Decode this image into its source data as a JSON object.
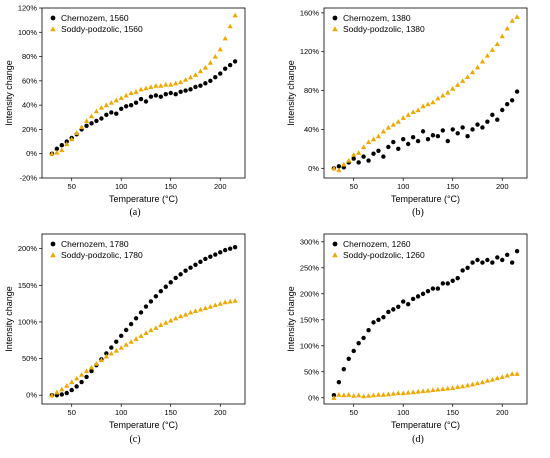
{
  "colors": {
    "chernozem": "#000000",
    "soddy": "#f0a800"
  },
  "chart_data": [
    {
      "type": "scatter",
      "panel_label": "(a)",
      "xlabel": "Temperature (°C)",
      "ylabel": "Intensity change",
      "xlim": [
        20,
        225
      ],
      "ylim": [
        -0.2,
        1.2
      ],
      "xticks": [
        50,
        100,
        150,
        200
      ],
      "yticks": [
        -0.2,
        0,
        0.2,
        0.4,
        0.6,
        0.8,
        1.0,
        1.2
      ],
      "ytick_labels": [
        "-20%",
        "0%",
        "20%",
        "40%",
        "60%",
        "80%",
        "100%",
        "120%"
      ],
      "legend_position": "top-left",
      "series": [
        {
          "name": "Chernozem, 1560",
          "marker": "circle",
          "color": "#000000",
          "x": [
            30,
            35,
            40,
            45,
            50,
            55,
            60,
            65,
            70,
            75,
            80,
            85,
            90,
            95,
            100,
            105,
            110,
            115,
            120,
            125,
            130,
            135,
            140,
            145,
            150,
            155,
            160,
            165,
            170,
            175,
            180,
            185,
            190,
            195,
            200,
            205,
            210,
            215
          ],
          "y": [
            0.0,
            0.04,
            0.07,
            0.1,
            0.13,
            0.16,
            0.2,
            0.23,
            0.25,
            0.27,
            0.29,
            0.32,
            0.34,
            0.33,
            0.37,
            0.39,
            0.4,
            0.42,
            0.45,
            0.43,
            0.47,
            0.48,
            0.47,
            0.49,
            0.5,
            0.49,
            0.51,
            0.52,
            0.53,
            0.55,
            0.56,
            0.58,
            0.6,
            0.63,
            0.66,
            0.7,
            0.73,
            0.76
          ]
        },
        {
          "name": "Soddy-podzolic, 1560",
          "marker": "triangle",
          "color": "#f0a800",
          "x": [
            30,
            35,
            40,
            45,
            50,
            55,
            60,
            65,
            70,
            75,
            80,
            85,
            90,
            95,
            100,
            105,
            110,
            115,
            120,
            125,
            130,
            135,
            140,
            145,
            150,
            155,
            160,
            165,
            170,
            175,
            180,
            185,
            190,
            195,
            200,
            205,
            210,
            215
          ],
          "y": [
            0.0,
            0.01,
            0.03,
            0.08,
            0.12,
            0.17,
            0.22,
            0.27,
            0.31,
            0.35,
            0.38,
            0.4,
            0.42,
            0.44,
            0.46,
            0.48,
            0.5,
            0.51,
            0.53,
            0.54,
            0.55,
            0.56,
            0.56,
            0.57,
            0.57,
            0.58,
            0.59,
            0.61,
            0.63,
            0.65,
            0.68,
            0.71,
            0.75,
            0.8,
            0.86,
            0.95,
            1.05,
            1.14
          ]
        }
      ]
    },
    {
      "type": "scatter",
      "panel_label": "(b)",
      "xlabel": "Temperature (°C)",
      "ylabel": "Intensity change",
      "xlim": [
        20,
        225
      ],
      "ylim": [
        -0.1,
        1.65
      ],
      "xticks": [
        50,
        100,
        150,
        200
      ],
      "yticks": [
        0,
        0.4,
        0.8,
        1.2,
        1.6
      ],
      "ytick_labels": [
        "0%",
        "40%",
        "80%",
        "120%",
        "160%"
      ],
      "legend_position": "top-left",
      "series": [
        {
          "name": "Chernozem, 1380",
          "marker": "circle",
          "color": "#000000",
          "x": [
            30,
            35,
            40,
            45,
            50,
            55,
            60,
            65,
            70,
            75,
            80,
            85,
            90,
            95,
            100,
            105,
            110,
            115,
            120,
            125,
            130,
            135,
            140,
            145,
            150,
            155,
            160,
            165,
            170,
            175,
            180,
            185,
            190,
            195,
            200,
            205,
            210,
            215
          ],
          "y": [
            0.0,
            0.02,
            0.01,
            0.06,
            0.1,
            0.06,
            0.12,
            0.08,
            0.15,
            0.18,
            0.12,
            0.22,
            0.27,
            0.2,
            0.3,
            0.25,
            0.32,
            0.28,
            0.38,
            0.3,
            0.34,
            0.33,
            0.39,
            0.28,
            0.4,
            0.36,
            0.42,
            0.33,
            0.4,
            0.45,
            0.42,
            0.48,
            0.55,
            0.5,
            0.6,
            0.66,
            0.7,
            0.79
          ]
        },
        {
          "name": "Soddy-podzolic, 1380",
          "marker": "triangle",
          "color": "#f0a800",
          "x": [
            30,
            35,
            40,
            45,
            50,
            55,
            60,
            65,
            70,
            75,
            80,
            85,
            90,
            95,
            100,
            105,
            110,
            115,
            120,
            125,
            130,
            135,
            140,
            145,
            150,
            155,
            160,
            165,
            170,
            175,
            180,
            185,
            190,
            195,
            200,
            205,
            210,
            215
          ],
          "y": [
            0.0,
            -0.02,
            0.04,
            0.08,
            0.14,
            0.16,
            0.22,
            0.27,
            0.3,
            0.33,
            0.38,
            0.42,
            0.45,
            0.48,
            0.52,
            0.55,
            0.58,
            0.6,
            0.64,
            0.66,
            0.68,
            0.72,
            0.75,
            0.78,
            0.82,
            0.86,
            0.9,
            0.94,
            0.99,
            1.04,
            1.1,
            1.16,
            1.22,
            1.28,
            1.36,
            1.44,
            1.52,
            1.56
          ]
        }
      ]
    },
    {
      "type": "scatter",
      "panel_label": "(c)",
      "xlabel": "Temperature (°C)",
      "ylabel": "Intensity change",
      "xlim": [
        20,
        225
      ],
      "ylim": [
        -0.12,
        2.2
      ],
      "xticks": [
        50,
        100,
        150,
        200
      ],
      "yticks": [
        0,
        0.5,
        1.0,
        1.5,
        2.0
      ],
      "ytick_labels": [
        "0%",
        "50%",
        "100%",
        "150%",
        "200%"
      ],
      "legend_position": "top-left",
      "series": [
        {
          "name": "Chernozem, 1780",
          "marker": "circle",
          "color": "#000000",
          "x": [
            30,
            35,
            40,
            45,
            50,
            55,
            60,
            65,
            70,
            75,
            80,
            85,
            90,
            95,
            100,
            105,
            110,
            115,
            120,
            125,
            130,
            135,
            140,
            145,
            150,
            155,
            160,
            165,
            170,
            175,
            180,
            185,
            190,
            195,
            200,
            205,
            210,
            215
          ],
          "y": [
            0.0,
            0.0,
            0.01,
            0.03,
            0.07,
            0.12,
            0.18,
            0.25,
            0.33,
            0.41,
            0.49,
            0.57,
            0.65,
            0.73,
            0.81,
            0.89,
            0.97,
            1.05,
            1.13,
            1.21,
            1.28,
            1.35,
            1.42,
            1.48,
            1.54,
            1.6,
            1.65,
            1.7,
            1.74,
            1.78,
            1.82,
            1.86,
            1.89,
            1.92,
            1.95,
            1.98,
            2.0,
            2.02
          ]
        },
        {
          "name": "Soddy-podzolic, 1780",
          "marker": "triangle",
          "color": "#f0a800",
          "x": [
            30,
            35,
            40,
            45,
            50,
            55,
            60,
            65,
            70,
            75,
            80,
            85,
            90,
            95,
            100,
            105,
            110,
            115,
            120,
            125,
            130,
            135,
            140,
            145,
            150,
            155,
            160,
            165,
            170,
            175,
            180,
            185,
            190,
            195,
            200,
            205,
            210,
            215
          ],
          "y": [
            0.0,
            0.04,
            0.08,
            0.13,
            0.18,
            0.23,
            0.28,
            0.33,
            0.38,
            0.43,
            0.48,
            0.53,
            0.57,
            0.61,
            0.65,
            0.69,
            0.73,
            0.77,
            0.81,
            0.85,
            0.89,
            0.92,
            0.96,
            0.99,
            1.02,
            1.05,
            1.08,
            1.1,
            1.13,
            1.15,
            1.17,
            1.19,
            1.21,
            1.23,
            1.25,
            1.27,
            1.28,
            1.29
          ]
        }
      ]
    },
    {
      "type": "scatter",
      "panel_label": "(d)",
      "xlabel": "Temperature (°C)",
      "ylabel": "Intensity change",
      "xlim": [
        20,
        225
      ],
      "ylim": [
        -0.12,
        3.15
      ],
      "xticks": [
        50,
        100,
        150,
        200
      ],
      "yticks": [
        0,
        0.5,
        1.0,
        1.5,
        2.0,
        2.5,
        3.0
      ],
      "ytick_labels": [
        "0%",
        "50%",
        "100%",
        "150%",
        "200%",
        "250%",
        "300%"
      ],
      "legend_position": "top-left",
      "series": [
        {
          "name": "Chernozem, 1260",
          "marker": "circle",
          "color": "#000000",
          "x": [
            30,
            35,
            40,
            45,
            50,
            55,
            60,
            65,
            70,
            75,
            80,
            85,
            90,
            95,
            100,
            105,
            110,
            115,
            120,
            125,
            130,
            135,
            140,
            145,
            150,
            155,
            160,
            165,
            170,
            175,
            180,
            185,
            190,
            195,
            200,
            205,
            210,
            215
          ],
          "y": [
            0.05,
            0.3,
            0.55,
            0.75,
            0.9,
            1.05,
            1.15,
            1.3,
            1.45,
            1.5,
            1.55,
            1.65,
            1.7,
            1.75,
            1.85,
            1.8,
            1.9,
            1.95,
            2.0,
            2.05,
            2.1,
            2.1,
            2.2,
            2.2,
            2.25,
            2.3,
            2.45,
            2.5,
            2.6,
            2.65,
            2.6,
            2.65,
            2.6,
            2.7,
            2.65,
            2.75,
            2.6,
            2.82
          ]
        },
        {
          "name": "Soddy-podzolic, 1260",
          "marker": "triangle",
          "color": "#f0a800",
          "x": [
            30,
            35,
            40,
            45,
            50,
            55,
            60,
            65,
            70,
            75,
            80,
            85,
            90,
            95,
            100,
            105,
            110,
            115,
            120,
            125,
            130,
            135,
            140,
            145,
            150,
            155,
            160,
            165,
            170,
            175,
            180,
            185,
            190,
            195,
            200,
            205,
            210,
            215
          ],
          "y": [
            0.0,
            0.06,
            0.05,
            0.06,
            0.04,
            0.05,
            0.03,
            0.04,
            0.05,
            0.06,
            0.06,
            0.07,
            0.08,
            0.09,
            0.09,
            0.1,
            0.11,
            0.12,
            0.13,
            0.14,
            0.15,
            0.16,
            0.17,
            0.18,
            0.19,
            0.21,
            0.22,
            0.24,
            0.26,
            0.28,
            0.3,
            0.33,
            0.35,
            0.38,
            0.4,
            0.43,
            0.46,
            0.46
          ]
        }
      ]
    }
  ]
}
